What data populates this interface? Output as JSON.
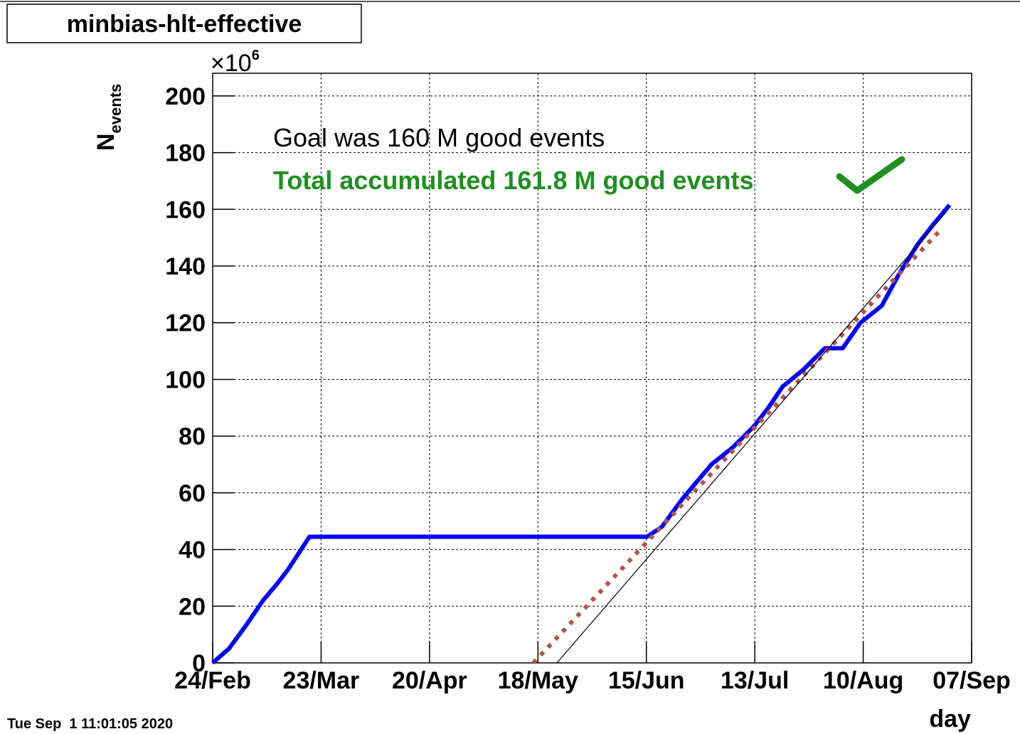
{
  "chart_data": {
    "type": "line",
    "title": "minbias-hlt-effective",
    "ylabel_main": "N",
    "ylabel_sub": "events",
    "multiplier_base": "×10",
    "multiplier_exp": "6",
    "xlabel": "day",
    "timestamp": "Tue Sep  1 11:01:05 2020",
    "annotations": [
      {
        "text": "Goal was 160 M good events",
        "color": "#000000"
      },
      {
        "text": "Total accumulated 161.8 M good events",
        "color": "#1f8f1f"
      }
    ],
    "xlim": [
      0,
      196
    ],
    "ylim": [
      0,
      208
    ],
    "xticks": [
      {
        "value": 0,
        "label": "24/Feb"
      },
      {
        "value": 28,
        "label": "23/Mar"
      },
      {
        "value": 56,
        "label": "20/Apr"
      },
      {
        "value": 84,
        "label": "18/May"
      },
      {
        "value": 112,
        "label": "15/Jun"
      },
      {
        "value": 140,
        "label": "13/Jul"
      },
      {
        "value": 168,
        "label": "10/Aug"
      },
      {
        "value": 196,
        "label": "07/Sep"
      }
    ],
    "yticks": [
      0,
      20,
      40,
      60,
      80,
      100,
      120,
      140,
      160,
      180,
      200
    ],
    "grid": true,
    "series": [
      {
        "color": "#0000ff",
        "width": 6,
        "dash": "solid",
        "x": [
          0,
          4.2,
          8.5,
          13,
          16.7,
          19.5,
          25,
          112.2,
          116,
          121.4,
          128.8,
          134.3,
          139.8,
          143.5,
          147.2,
          152.6,
          158.1,
          162.7,
          167.3,
          172.8,
          177.4,
          182,
          185.7,
          190.3
        ],
        "values": [
          0,
          5,
          13,
          22,
          28,
          33,
          44.5,
          44.5,
          48,
          58,
          70,
          76,
          83.5,
          90,
          97.5,
          103.5,
          111,
          111,
          120,
          126,
          137.5,
          147.5,
          154,
          161.5
        ]
      },
      {
        "color": "#b5544a",
        "width": 6,
        "dash": "dotted",
        "x": [
          82.8,
          188.5
        ],
        "values": [
          0,
          153.5
        ]
      },
      {
        "color": "#000000",
        "width": 1.2,
        "dash": "solid",
        "x": [
          88.9,
          189.4
        ],
        "values": [
          0,
          159
        ]
      }
    ]
  }
}
